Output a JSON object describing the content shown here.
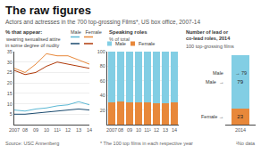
{
  "title": "The raw figures",
  "subtitle": "Actors and actresses in the 700 top-grossing Films*, US box office, 2007-14",
  "annotations": [
    "Source: USC Annenberg",
    "* The 100 top films in each respective year",
    "¹No data"
  ],
  "chart_data": [
    {
      "type": "line",
      "title": "% that appear:",
      "annotations": [
        "wearing sexualised attire",
        "in some degree of nudity",
        "Male   Female"
      ],
      "categories": [
        "2007",
        "08",
        "09",
        "10",
        "11¹",
        "12",
        "13",
        "14"
      ],
      "series": [
        {
          "color": "#b03a0a",
          "values": [
            26,
            24,
            25,
            28,
            30,
            29,
            28,
            27
          ]
        },
        {
          "color": "#e8883a",
          "values": [
            27,
            25,
            29,
            34,
            33,
            33,
            31,
            29
          ]
        },
        {
          "color": "#1a4a6e",
          "values": [
            5,
            5,
            5.5,
            6,
            6.5,
            7,
            7.5,
            7
          ]
        },
        {
          "color": "#5bb8d4",
          "values": [
            7,
            6.5,
            7.5,
            8,
            9,
            9.5,
            11,
            9.5
          ]
        }
      ],
      "ylim": [
        0,
        35
      ],
      "yticks": [
        5,
        10,
        15,
        20,
        25,
        30,
        35
      ],
      "grid": true
    },
    {
      "type": "bar",
      "stacked": true,
      "title": "Speaking roles",
      "subtitle": "% of total",
      "categories": [
        "2007",
        "08",
        "09",
        "10",
        "11¹",
        "12",
        "13",
        "14"
      ],
      "series": [
        {
          "name": "Female",
          "color": "#e8883a",
          "values": [
            31,
            32,
            31,
            30,
            30,
            29,
            29,
            30
          ]
        },
        {
          "name": "Male",
          "color": "#82cee4",
          "values": [
            69,
            68,
            69,
            70,
            70,
            71,
            71,
            70
          ]
        }
      ],
      "ylim": [
        0,
        100
      ],
      "yticks": [
        20,
        40,
        60,
        80,
        100
      ],
      "grid": true
    },
    {
      "type": "bar",
      "stacked": true,
      "title": "Number of lead or\nco-lead roles, 2014",
      "subtitle": "100 top-grossing films",
      "categories": [
        "2014"
      ],
      "series": [
        {
          "color": "#e8883a",
          "values": [
            23
          ]
        },
        {
          "color": "#82cee4",
          "values": [
            79
          ]
        }
      ],
      "annotations": [
        "Male",
        "→ 79",
        "Male  →",
        "Female →"
      ],
      "data_labels": true,
      "tick_labels": "x",
      "grid": false
    }
  ]
}
